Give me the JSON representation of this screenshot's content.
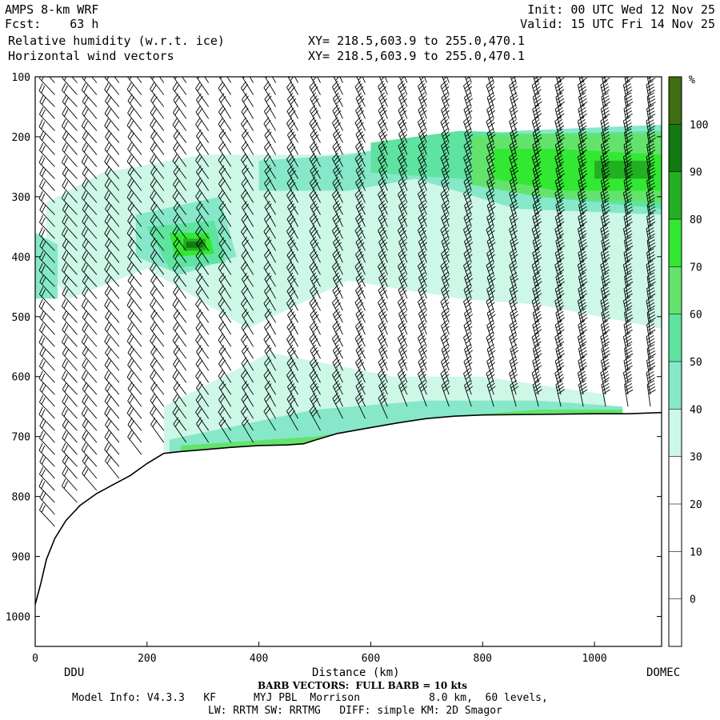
{
  "header": {
    "model": "AMPS 8-km WRF",
    "fcst_label": "Fcst:",
    "fcst_value": "63 h",
    "field1": "Relative humidity (w.r.t. ice)",
    "field2": "Horizontal wind vectors",
    "xy1": "XY= 218.5,603.9 to 255.0,470.1",
    "xy2": "XY= 218.5,603.9 to 255.0,470.1",
    "init": "Init: 00 UTC Wed 12 Nov 25",
    "valid": "Valid: 15 UTC Fri 14 Nov 25"
  },
  "footer": {
    "barb_note": "BARB VECTORS:  FULL BARB = 10 kts",
    "model_info": "Model Info: V4.3.3   KF      MYJ PBL  Morrison           8.0 km,  60 levels,",
    "physics": "LW: RRTM SW: RRTMG   DIFF: simple KM: 2D Smagor"
  },
  "colors": {
    "rh_20_30": "#ffffff",
    "rh_30_40": "#cdf7e7",
    "rh_40_50": "#86e8c9",
    "rh_50_60": "#5fe3a0",
    "rh_60_70": "#63e36c",
    "rh_70_80": "#33e833",
    "rh_80_90": "#22b022",
    "rh_90_100": "#117a11",
    "rh_100_plus": "#3f6d12",
    "terrain": "#ffffff"
  },
  "chart_data": {
    "type": "heatmap",
    "title": "Relative humidity (w.r.t. ice)",
    "xlabel": "Distance (km)",
    "ylabel": "",
    "xlim": [
      0,
      1120
    ],
    "ylim": [
      1050,
      100
    ],
    "x_ticks": [
      0,
      200,
      400,
      600,
      800,
      1000
    ],
    "y_ticks": [
      100,
      200,
      300,
      400,
      500,
      600,
      700,
      800,
      900,
      1000
    ],
    "endpoint_labels": {
      "left": "DDU",
      "right": "DOMEC"
    },
    "colorbar": {
      "unit": "%",
      "levels": [
        0,
        10,
        20,
        30,
        40,
        50,
        60,
        70,
        80,
        90,
        100
      ]
    },
    "terrain_surface": {
      "x": [
        0,
        10,
        20,
        35,
        55,
        80,
        110,
        140,
        170,
        200,
        230,
        260,
        300,
        350,
        400,
        450,
        480,
        500,
        540,
        600,
        650,
        700,
        750,
        800,
        900,
        1000,
        1060,
        1120
      ],
      "p": [
        980,
        945,
        905,
        870,
        840,
        815,
        795,
        780,
        765,
        745,
        728,
        725,
        722,
        718,
        715,
        714,
        712,
        706,
        695,
        685,
        677,
        670,
        666,
        664,
        663,
        662,
        662,
        660
      ]
    },
    "rh_regions": [
      {
        "level": "30-40",
        "x": [
          20,
          120,
          300,
          520,
          720,
          900,
          1120,
          1120,
          900,
          760,
          560,
          380,
          200,
          60,
          20
        ],
        "p": [
          310,
          260,
          230,
          230,
          215,
          200,
          185,
          520,
          480,
          470,
          440,
          520,
          420,
          470,
          420
        ]
      },
      {
        "level": "30-40",
        "x": [
          230,
          420,
          640,
          800,
          1020,
          1020,
          800,
          640,
          420,
          230
        ],
        "p": [
          650,
          560,
          600,
          600,
          630,
          665,
          665,
          680,
          712,
          725
        ]
      },
      {
        "level": "40-50",
        "x": [
          0,
          40,
          40,
          0
        ],
        "p": [
          360,
          380,
          470,
          470
        ]
      },
      {
        "level": "40-50",
        "x": [
          180,
          330,
          360,
          260,
          180
        ],
        "p": [
          330,
          300,
          400,
          430,
          400
        ]
      },
      {
        "level": "40-50",
        "x": [
          400,
          560,
          680,
          860,
          1120,
          1120,
          860,
          680,
          560,
          400
        ],
        "p": [
          240,
          230,
          210,
          190,
          180,
          330,
          320,
          270,
          290,
          290
        ]
      },
      {
        "level": "40-50",
        "x": [
          240,
          500,
          700,
          900,
          1050,
          1050,
          900,
          700,
          500,
          240
        ],
        "p": [
          705,
          655,
          640,
          640,
          650,
          670,
          672,
          680,
          718,
          732
        ]
      },
      {
        "level": "50-60",
        "x": [
          200,
          320,
          340,
          240
        ],
        "p": [
          350,
          340,
          410,
          420
        ]
      },
      {
        "level": "50-60",
        "x": [
          600,
          760,
          900,
          1120,
          1120,
          900,
          760,
          600
        ],
        "p": [
          210,
          190,
          195,
          190,
          320,
          300,
          270,
          260
        ]
      },
      {
        "level": "60-70",
        "x": [
          780,
          900,
          1120,
          1120,
          900,
          780
        ],
        "p": [
          200,
          195,
          195,
          310,
          300,
          280
        ]
      },
      {
        "level": "60-70",
        "x": [
          260,
          500,
          700,
          900,
          1050,
          1050,
          900,
          700,
          500,
          260
        ],
        "p": [
          715,
          700,
          670,
          655,
          655,
          665,
          668,
          676,
          714,
          726
        ]
      },
      {
        "level": "70-80",
        "x": [
          240,
          310,
          320,
          250
        ],
        "p": [
          360,
          360,
          395,
          400
        ]
      },
      {
        "level": "70-80",
        "x": [
          820,
          930,
          1120,
          1120,
          930,
          820
        ],
        "p": [
          220,
          220,
          230,
          290,
          290,
          270
        ]
      },
      {
        "level": "80-90",
        "x": [
          265,
          305,
          305,
          265
        ],
        "p": [
          370,
          370,
          390,
          390
        ]
      },
      {
        "level": "80-90",
        "x": [
          1000,
          1100,
          1100,
          1000
        ],
        "p": [
          240,
          240,
          270,
          270
        ]
      },
      {
        "level": "90-100",
        "x": [
          270,
          300,
          300,
          270
        ],
        "p": [
          375,
          375,
          385,
          385
        ]
      }
    ],
    "wind": {
      "columns_x": [
        0,
        35,
        75,
        110,
        150,
        190,
        230,
        270,
        310,
        350,
        390,
        430,
        470,
        510,
        550,
        590,
        630,
        665,
        700,
        740,
        780,
        820,
        860,
        900,
        940,
        980,
        1020,
        1060,
        1100
      ],
      "levels_p": [
        110,
        130,
        150,
        170,
        190,
        210,
        230,
        250,
        270,
        290,
        310,
        330,
        350,
        370,
        390,
        410,
        430,
        450,
        470,
        490,
        510,
        530,
        550,
        570,
        590,
        610,
        630,
        650,
        670,
        690,
        710,
        730,
        750,
        770,
        790,
        810,
        830,
        850,
        870,
        890,
        910,
        930,
        950,
        970,
        990
      ],
      "speed_kts_by_x": [
        {
          "x": 0,
          "kts": 25
        },
        {
          "x": 300,
          "kts": 25
        },
        {
          "x": 600,
          "kts": 35
        },
        {
          "x": 900,
          "kts": 40
        },
        {
          "x": 1120,
          "kts": 40
        }
      ],
      "direction_note": "staff orientation tilts from upper-left toward near-vertical eastward"
    }
  }
}
